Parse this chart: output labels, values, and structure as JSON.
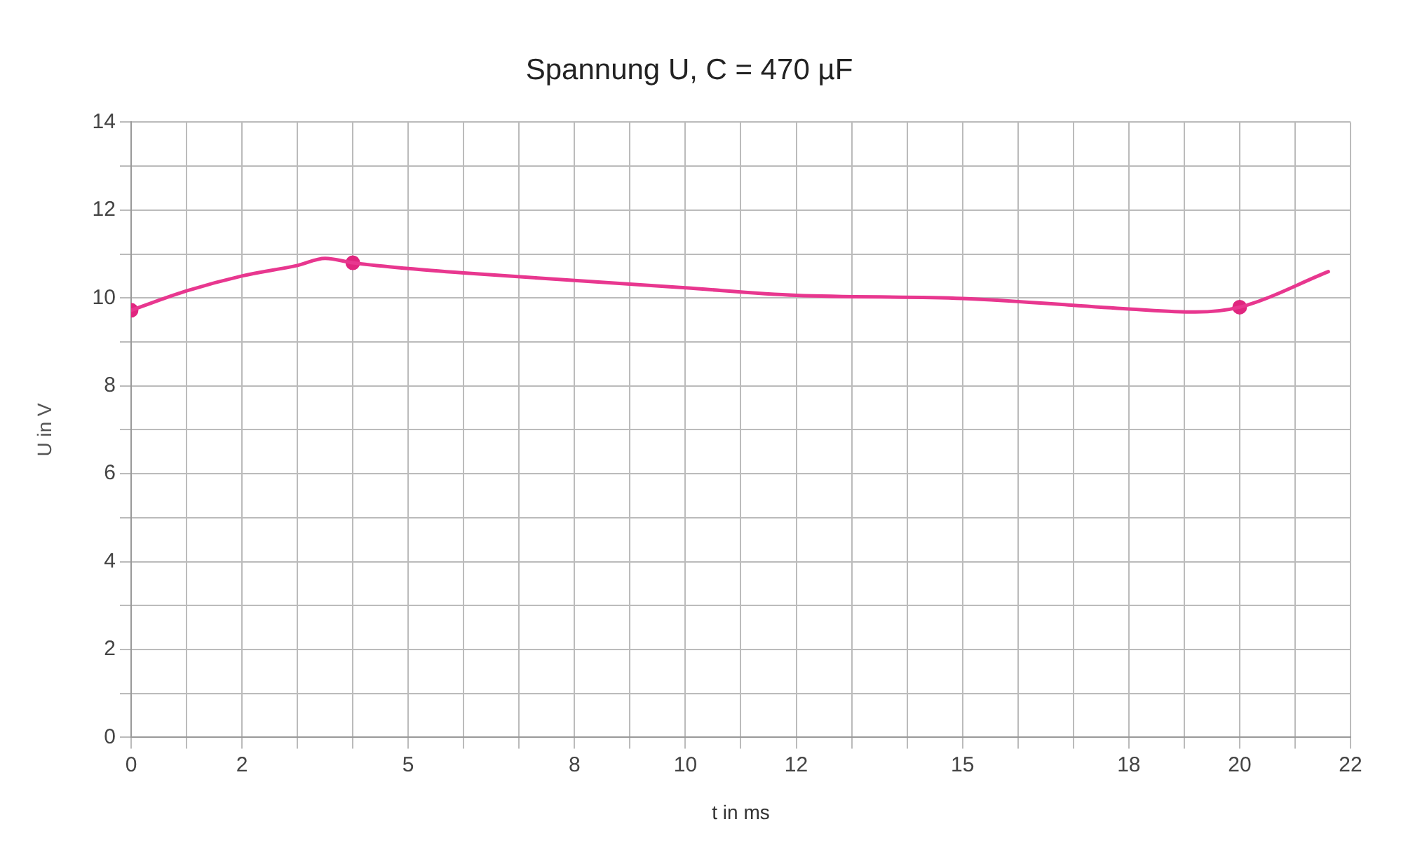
{
  "chart_data": {
    "type": "line",
    "title": "Spannung U, C = 470 µF",
    "xlabel": "t in ms",
    "ylabel": "U in V",
    "series": [
      {
        "type": "line",
        "color": "#e8378f",
        "marker": "none",
        "x": [
          0,
          1,
          2,
          3,
          3.5,
          4,
          5,
          6,
          8,
          10,
          12,
          15,
          18,
          19.2,
          20,
          21.6
        ],
        "values": [
          9.72,
          10.16,
          10.5,
          10.74,
          10.9,
          10.8,
          10.67,
          10.57,
          10.4,
          10.23,
          10.06,
          9.99,
          9.75,
          9.68,
          9.79,
          10.6
        ]
      },
      {
        "type": "scatter",
        "color": "#e0267f",
        "marker": "circle",
        "x": [
          0,
          4,
          20
        ],
        "values": [
          9.72,
          10.8,
          9.79
        ]
      }
    ],
    "xlim": [
      0,
      22
    ],
    "ylim": [
      0,
      14
    ],
    "xticks": [
      0,
      {
        "value": 1,
        "label": null
      },
      2,
      {
        "value": 3,
        "label": null
      },
      {
        "value": 4,
        "label": null
      },
      5,
      {
        "value": 6,
        "label": null
      },
      {
        "value": 7,
        "label": null
      },
      8,
      {
        "value": 9,
        "label": null
      },
      10,
      {
        "value": 11,
        "label": null
      },
      12,
      {
        "value": 13,
        "label": null
      },
      {
        "value": 14,
        "label": null
      },
      15,
      {
        "value": 16,
        "label": null
      },
      {
        "value": 17,
        "label": null
      },
      18,
      {
        "value": 19,
        "label": null
      },
      20,
      {
        "value": 21,
        "label": null
      },
      22
    ],
    "yticks": [
      0,
      {
        "value": 1,
        "label": null
      },
      2,
      {
        "value": 3,
        "label": null
      },
      4,
      {
        "value": 5,
        "label": null
      },
      6,
      {
        "value": 7,
        "label": null
      },
      8,
      {
        "value": 9,
        "label": null
      },
      10,
      {
        "value": 11,
        "label": null
      },
      12,
      {
        "value": 13,
        "label": null
      },
      14
    ],
    "grid": true,
    "legend": false
  }
}
